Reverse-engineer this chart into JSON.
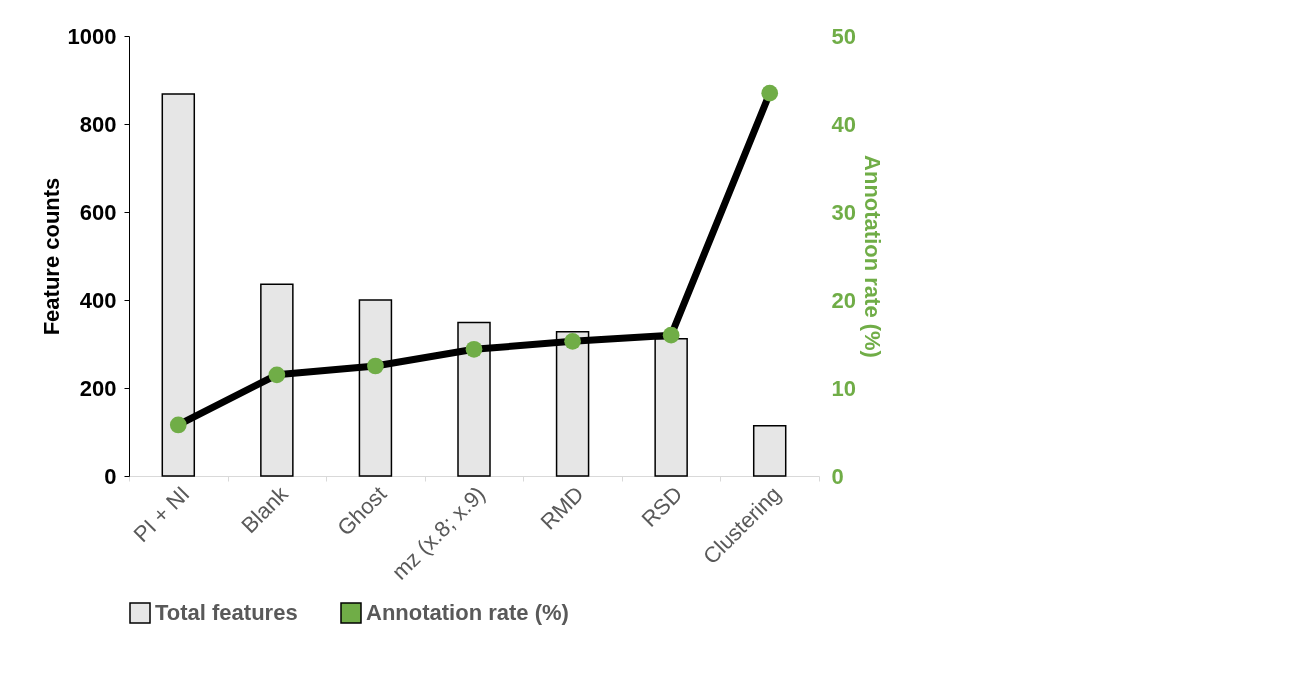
{
  "chart_data": {
    "type": "bar",
    "categories": [
      "PI + NI",
      "Blank",
      "Ghost",
      "mz (x.8; x.9)",
      "RMD",
      "RSD",
      "Clustering"
    ],
    "ylabel": "Feature counts",
    "y2label": "Annotation rate (%)",
    "ylim": [
      0,
      1000
    ],
    "yticks": [
      0,
      200,
      400,
      600,
      800,
      1000
    ],
    "y2lim": [
      0,
      50
    ],
    "y2ticks": [
      0,
      10,
      20,
      30,
      40,
      50
    ],
    "series": [
      {
        "name": "Total features",
        "color": "#e6e6e6",
        "values": [
          868,
          436,
          400,
          349,
          328,
          312,
          114
        ]
      },
      {
        "name": "Annotation rate (%)",
        "type": "line",
        "axis": "y2",
        "color": "#70ad47",
        "values": [
          5.8,
          11.5,
          12.5,
          14.4,
          15.3,
          16.0,
          43.5
        ]
      }
    ],
    "marker": "circle",
    "legend": "bottom",
    "grid": false
  }
}
